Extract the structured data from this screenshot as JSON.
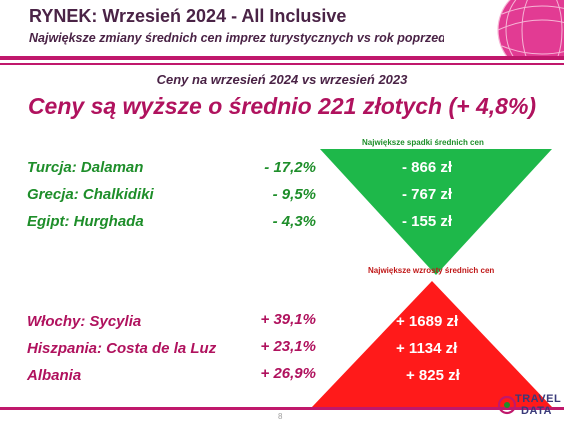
{
  "header": {
    "title": "RYNEK: Wrzesień 2024 - All Inclusive",
    "subtitle": "Największe zmiany średnich cen imprez turystycznych vs rok poprzedni"
  },
  "slide": {
    "comparison": "Ceny na wrzesień 2024 vs wrzesień 2023",
    "headline": "Ceny są wyższe o średnio 221 złotych (+ 4,8%)",
    "decreases_label": "Największe spadki średnich cen",
    "increases_label": "Największe wzrosty średnich cen",
    "page_number": "8"
  },
  "decreases": [
    {
      "destination": "Turcja: Dalaman",
      "percent": "- 17,2%",
      "amount": "- 866 zł"
    },
    {
      "destination": "Grecja: Chalkidiki",
      "percent": "- 9,5%",
      "amount": "- 767 zł"
    },
    {
      "destination": "Egipt: Hurghada",
      "percent": "- 4,3%",
      "amount": "- 155 zł"
    }
  ],
  "increases": [
    {
      "destination": "Włochy: Sycylia",
      "percent": "+ 39,1%",
      "amount": "+ 1689 zł"
    },
    {
      "destination": "Hiszpania: Costa de la Luz",
      "percent": "+ 23,1%",
      "amount": "+ 1134 zł"
    },
    {
      "destination": "Albania",
      "percent": "+ 26,9%",
      "amount": "+ 825 zł"
    }
  ],
  "logo": {
    "line1": "TRAVEL",
    "line2": "DATA"
  },
  "colors": {
    "brand_magenta": "#c0186c",
    "decrease_green": "#1e8e2a",
    "triangle_green": "#1eb84a",
    "increase_red": "#b0125e",
    "triangle_red": "#ff1a1a"
  },
  "icons": {
    "logo": "travel-data-logo"
  }
}
